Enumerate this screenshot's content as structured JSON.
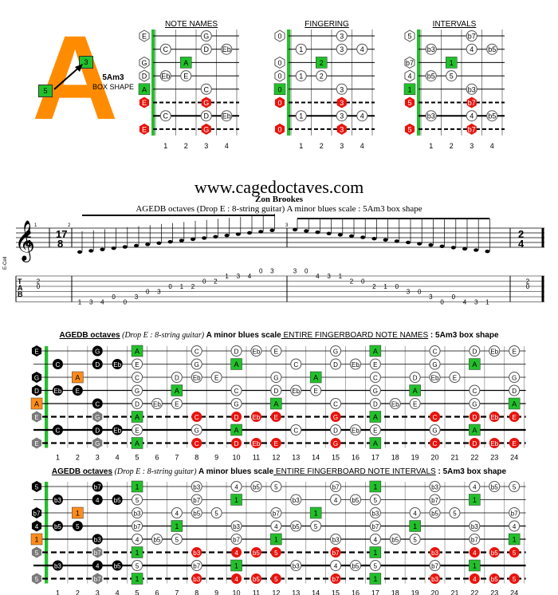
{
  "logo": {
    "letter": "A",
    "label1": "5Am3",
    "label2": "BOX SHAPE",
    "box_left": "5",
    "box_right": "3"
  },
  "small_diagrams": [
    {
      "title": "NOTE NAMES",
      "cells": [
        {
          "s": 0,
          "f": 0,
          "t": "E",
          "k": "open"
        },
        {
          "s": 0,
          "f": 3,
          "t": "G",
          "k": "w"
        },
        {
          "s": 1,
          "f": 1,
          "t": "C",
          "k": "w"
        },
        {
          "s": 1,
          "f": 3,
          "t": "D",
          "k": "w"
        },
        {
          "s": 1,
          "f": 4,
          "t": "Eb",
          "k": "w"
        },
        {
          "s": 2,
          "f": 0,
          "t": "G",
          "k": "open"
        },
        {
          "s": 2,
          "f": 2,
          "t": "A",
          "k": "g"
        },
        {
          "s": 3,
          "f": 0,
          "t": "D",
          "k": "open"
        },
        {
          "s": 3,
          "f": 1,
          "t": "Eb",
          "k": "w"
        },
        {
          "s": 3,
          "f": 2,
          "t": "E",
          "k": "w"
        },
        {
          "s": 4,
          "f": 0,
          "t": "A",
          "k": "g"
        },
        {
          "s": 4,
          "f": 3,
          "t": "C",
          "k": "w"
        },
        {
          "s": 5,
          "f": 0,
          "t": "E",
          "k": "r"
        },
        {
          "s": 5,
          "f": 3,
          "t": "G",
          "k": "r"
        },
        {
          "s": 6,
          "f": 1,
          "t": "C",
          "k": "w"
        },
        {
          "s": 6,
          "f": 3,
          "t": "D",
          "k": "w"
        },
        {
          "s": 6,
          "f": 4,
          "t": "Eb",
          "k": "w"
        },
        {
          "s": 7,
          "f": 0,
          "t": "E",
          "k": "r"
        },
        {
          "s": 7,
          "f": 3,
          "t": "G",
          "k": "r"
        }
      ]
    },
    {
      "title": "FINGERING",
      "cells": [
        {
          "s": 0,
          "f": 0,
          "t": "0",
          "k": "open"
        },
        {
          "s": 0,
          "f": 3,
          "t": "3",
          "k": "w"
        },
        {
          "s": 1,
          "f": 1,
          "t": "1",
          "k": "w"
        },
        {
          "s": 1,
          "f": 3,
          "t": "3",
          "k": "w"
        },
        {
          "s": 1,
          "f": 4,
          "t": "4",
          "k": "w"
        },
        {
          "s": 2,
          "f": 0,
          "t": "0",
          "k": "open"
        },
        {
          "s": 2,
          "f": 2,
          "t": "2",
          "k": "g"
        },
        {
          "s": 3,
          "f": 0,
          "t": "0",
          "k": "open"
        },
        {
          "s": 3,
          "f": 1,
          "t": "1",
          "k": "w"
        },
        {
          "s": 3,
          "f": 2,
          "t": "2",
          "k": "w"
        },
        {
          "s": 4,
          "f": 0,
          "t": "0",
          "k": "g"
        },
        {
          "s": 4,
          "f": 3,
          "t": "3",
          "k": "w"
        },
        {
          "s": 5,
          "f": 0,
          "t": "0",
          "k": "r"
        },
        {
          "s": 5,
          "f": 3,
          "t": "3",
          "k": "r"
        },
        {
          "s": 6,
          "f": 1,
          "t": "1",
          "k": "w"
        },
        {
          "s": 6,
          "f": 3,
          "t": "3",
          "k": "w"
        },
        {
          "s": 6,
          "f": 4,
          "t": "4",
          "k": "w"
        },
        {
          "s": 7,
          "f": 0,
          "t": "0",
          "k": "r"
        },
        {
          "s": 7,
          "f": 3,
          "t": "3",
          "k": "r"
        }
      ]
    },
    {
      "title": "INTERVALS",
      "cells": [
        {
          "s": 0,
          "f": 0,
          "t": "5",
          "k": "open"
        },
        {
          "s": 0,
          "f": 3,
          "t": "b7",
          "k": "w"
        },
        {
          "s": 1,
          "f": 1,
          "t": "b3",
          "k": "w"
        },
        {
          "s": 1,
          "f": 3,
          "t": "4",
          "k": "w"
        },
        {
          "s": 1,
          "f": 4,
          "t": "b5",
          "k": "w"
        },
        {
          "s": 2,
          "f": 0,
          "t": "b7",
          "k": "open"
        },
        {
          "s": 2,
          "f": 2,
          "t": "1",
          "k": "g"
        },
        {
          "s": 3,
          "f": 0,
          "t": "4",
          "k": "open"
        },
        {
          "s": 3,
          "f": 1,
          "t": "b5",
          "k": "w"
        },
        {
          "s": 3,
          "f": 2,
          "t": "5",
          "k": "w"
        },
        {
          "s": 4,
          "f": 0,
          "t": "1",
          "k": "g"
        },
        {
          "s": 4,
          "f": 3,
          "t": "b3",
          "k": "w"
        },
        {
          "s": 5,
          "f": 0,
          "t": "5",
          "k": "r"
        },
        {
          "s": 5,
          "f": 3,
          "t": "b7",
          "k": "r"
        },
        {
          "s": 6,
          "f": 1,
          "t": "b3",
          "k": "w"
        },
        {
          "s": 6,
          "f": 3,
          "t": "4",
          "k": "w"
        },
        {
          "s": 6,
          "f": 4,
          "t": "b5",
          "k": "w"
        },
        {
          "s": 7,
          "f": 0,
          "t": "5",
          "k": "r"
        },
        {
          "s": 7,
          "f": 3,
          "t": "b7",
          "k": "r"
        }
      ]
    }
  ],
  "small_fret_numbers": [
    "1",
    "2",
    "3",
    "4"
  ],
  "site": "www.cagedoctaves.com",
  "author": "Zon Brookes",
  "subtitle": "AGEDB octaves (Drop E : 8-string guitar) A minor blues scale : 5Am3 box shape",
  "tab": {
    "time_sig": [
      "2",
      "4"
    ],
    "time_sig2": [
      "17",
      "8"
    ],
    "tuning": "E-Cell",
    "tab_letters": [
      "T",
      "A",
      "B"
    ],
    "measure_nums": [
      "1",
      "2",
      "3"
    ],
    "start_chord": [
      {
        "line": 1,
        "t": "2"
      },
      {
        "line": 2,
        "t": "0"
      }
    ],
    "end_chord": [
      {
        "line": 1,
        "t": "2"
      },
      {
        "line": 2,
        "t": "0"
      }
    ],
    "notes_a": [
      {
        "line": 5,
        "t": "1"
      },
      {
        "line": 5,
        "t": "3"
      },
      {
        "line": 5,
        "t": "4"
      },
      {
        "line": 4,
        "t": "0"
      },
      {
        "line": 5,
        "t": "0"
      },
      {
        "line": 4,
        "t": "3"
      },
      {
        "line": 3,
        "t": "0"
      },
      {
        "line": 3,
        "t": "3"
      },
      {
        "line": 2,
        "t": "0"
      },
      {
        "line": 2,
        "t": "1"
      },
      {
        "line": 2,
        "t": "2"
      },
      {
        "line": 1,
        "t": "0"
      },
      {
        "line": 1,
        "t": "2"
      },
      {
        "line": 0,
        "t": "1"
      },
      {
        "line": 0,
        "t": "3"
      },
      {
        "line": 0,
        "t": "4"
      },
      {
        "line": -1,
        "t": "0"
      },
      {
        "line": -1,
        "t": "3"
      }
    ],
    "notes_b": [
      {
        "line": -1,
        "t": "3"
      },
      {
        "line": -1,
        "t": "0"
      },
      {
        "line": 0,
        "t": "4"
      },
      {
        "line": 0,
        "t": "3"
      },
      {
        "line": 0,
        "t": "1"
      },
      {
        "line": 1,
        "t": "2"
      },
      {
        "line": 1,
        "t": "0"
      },
      {
        "line": 2,
        "t": "2"
      },
      {
        "line": 2,
        "t": "1"
      },
      {
        "line": 2,
        "t": "0"
      },
      {
        "line": 3,
        "t": "3"
      },
      {
        "line": 3,
        "t": "0"
      },
      {
        "line": 4,
        "t": "3"
      },
      {
        "line": 5,
        "t": "0"
      },
      {
        "line": 4,
        "t": "0"
      },
      {
        "line": 5,
        "t": "4"
      },
      {
        "line": 5,
        "t": "3"
      },
      {
        "line": 5,
        "t": "1"
      }
    ]
  },
  "section1": {
    "title_a": "AGEDB octaves",
    "title_b": " (Drop E : 8-string guitar) ",
    "title_c": "A minor blues scale",
    "title_d": " ENTIRE FINGERBOARD NOTE NAMES",
    "title_e": " : 5Am3 box shape"
  },
  "section2": {
    "title_a": "AGEDB octaves",
    "title_b": " (Drop E : 8-string guitar) ",
    "title_c": "A minor blues scale",
    "title_d": " ENTIRE FINGERBOARD NOTE INTERVALS",
    "title_e": " : 5Am3 box shape"
  },
  "fret_numbers": [
    "1",
    "2",
    "3",
    "4",
    "5",
    "6",
    "7",
    "8",
    "9",
    "10",
    "11",
    "12",
    "13",
    "14",
    "15",
    "16",
    "17",
    "18",
    "19",
    "20",
    "21",
    "22",
    "23",
    "24"
  ],
  "tuning_roots": [
    "E",
    "B",
    "G",
    "D",
    "A",
    "E",
    "B",
    "E"
  ],
  "fb_names": [
    [
      "E",
      "",
      "",
      "G",
      "",
      "A",
      "",
      "",
      "C",
      "",
      "D",
      "Eb",
      "E",
      "",
      "",
      "G",
      "",
      "A",
      "",
      "",
      "C",
      "",
      "D",
      "Eb",
      "E"
    ],
    [
      "",
      "C",
      "",
      "D",
      "Eb",
      "E",
      "",
      "",
      "G",
      "",
      "A",
      "",
      "",
      "C",
      "",
      "D",
      "Eb",
      "E",
      "",
      "",
      "G",
      "",
      "A",
      "",
      ""
    ],
    [
      "G",
      "",
      "A",
      "",
      "",
      "C",
      "",
      "D",
      "Eb",
      "E",
      "",
      "",
      "G",
      "",
      "A",
      "",
      "",
      "C",
      "",
      "D",
      "Eb",
      "E",
      "",
      "",
      "G"
    ],
    [
      "D",
      "Eb",
      "E",
      "",
      "",
      "G",
      "",
      "A",
      "",
      "",
      "C",
      "",
      "D",
      "Eb",
      "E",
      "",
      "",
      "G",
      "",
      "A",
      "",
      "",
      "C",
      "",
      "D"
    ],
    [
      "A",
      "",
      "",
      "C",
      "",
      "D",
      "Eb",
      "E",
      "",
      "",
      "G",
      "",
      "A",
      "",
      "",
      "C",
      "",
      "D",
      "Eb",
      "E",
      "",
      "",
      "G",
      "",
      "A"
    ],
    [
      "E",
      "",
      "",
      "G",
      "",
      "A",
      "",
      "",
      "C",
      "",
      "D",
      "Eb",
      "E",
      "",
      "",
      "G",
      "",
      "A",
      "",
      "",
      "C",
      "",
      "D",
      "Eb",
      "E"
    ],
    [
      "",
      "C",
      "",
      "D",
      "Eb",
      "E",
      "",
      "",
      "G",
      "",
      "A",
      "",
      "",
      "C",
      "",
      "D",
      "Eb",
      "E",
      "",
      "",
      "G",
      "",
      "A",
      "",
      ""
    ],
    [
      "E",
      "",
      "",
      "G",
      "",
      "A",
      "",
      "",
      "C",
      "",
      "D",
      "Eb",
      "E",
      "",
      "",
      "G",
      "",
      "A",
      "",
      "",
      "C",
      "",
      "D",
      "Eb",
      "E"
    ]
  ],
  "fb_intervals": [
    [
      "5",
      "",
      "",
      "b7",
      "",
      "1",
      "",
      "",
      "b3",
      "",
      "4",
      "b5",
      "5",
      "",
      "",
      "b7",
      "",
      "1",
      "",
      "",
      "b3",
      "",
      "4",
      "b5",
      "5"
    ],
    [
      "",
      "b3",
      "",
      "4",
      "b5",
      "5",
      "",
      "",
      "b7",
      "",
      "1",
      "",
      "",
      "b3",
      "",
      "4",
      "b5",
      "5",
      "",
      "",
      "b7",
      "",
      "1",
      "",
      ""
    ],
    [
      "b7",
      "",
      "1",
      "",
      "",
      "b3",
      "",
      "4",
      "b5",
      "5",
      "",
      "",
      "b7",
      "",
      "1",
      "",
      "",
      "b3",
      "",
      "4",
      "b5",
      "5",
      "",
      "",
      "b7"
    ],
    [
      "4",
      "b5",
      "5",
      "",
      "",
      "b7",
      "",
      "1",
      "",
      "",
      "b3",
      "",
      "4",
      "b5",
      "5",
      "",
      "",
      "b7",
      "",
      "1",
      "",
      "",
      "b3",
      "",
      "4"
    ],
    [
      "1",
      "",
      "",
      "b3",
      "",
      "4",
      "b5",
      "5",
      "",
      "",
      "b7",
      "",
      "1",
      "",
      "",
      "b3",
      "",
      "4",
      "b5",
      "5",
      "",
      "",
      "b7",
      "",
      "1"
    ],
    [
      "5",
      "",
      "",
      "b7",
      "",
      "1",
      "",
      "",
      "b3",
      "",
      "4",
      "b5",
      "5",
      "",
      "",
      "b7",
      "",
      "1",
      "",
      "",
      "b3",
      "",
      "4",
      "b5",
      "5"
    ],
    [
      "",
      "b3",
      "",
      "4",
      "b5",
      "5",
      "",
      "",
      "b7",
      "",
      "1",
      "",
      "",
      "b3",
      "",
      "4",
      "b5",
      "5",
      "",
      "",
      "b7",
      "",
      "1",
      "",
      ""
    ],
    [
      "5",
      "",
      "",
      "b7",
      "",
      "1",
      "",
      "",
      "b3",
      "",
      "4",
      "b5",
      "5",
      "",
      "",
      "b7",
      "",
      "1",
      "",
      "",
      "b3",
      "",
      "4",
      "b5",
      "5"
    ]
  ],
  "fb_box_black": [
    [
      0,
      3
    ],
    [
      1,
      1
    ],
    [
      1,
      3
    ],
    [
      1,
      4
    ],
    [
      2,
      0
    ],
    [
      3,
      0
    ],
    [
      3,
      1
    ],
    [
      3,
      2
    ],
    [
      4,
      3
    ],
    [
      6,
      1
    ],
    [
      6,
      3
    ],
    [
      6,
      4
    ]
  ],
  "fb_box_orange": [
    [
      2,
      2
    ],
    [
      4,
      0
    ]
  ],
  "fb_box_grey": [
    [
      5,
      0
    ],
    [
      5,
      3
    ],
    [
      7,
      0
    ],
    [
      7,
      3
    ]
  ],
  "colors": {
    "green": "#22c02b",
    "red": "#e8140e",
    "orange": "#ff8c1a",
    "black": "#000000",
    "grey": "#7a7a7a",
    "root_bar": "#22c02b"
  }
}
